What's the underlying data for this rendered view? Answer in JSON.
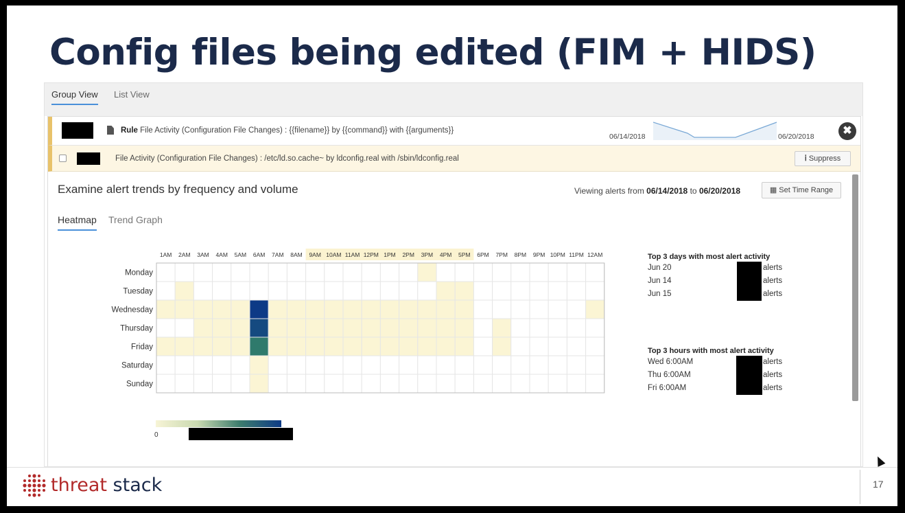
{
  "slide": {
    "title": "Config files being edited (FIM + HIDS)",
    "page_number": "17"
  },
  "view_tabs": [
    {
      "label": "Group View",
      "active": true
    },
    {
      "label": "List View",
      "active": false
    }
  ],
  "rule": {
    "prefix": "Rule",
    "text": "File Activity (Configuration File Changes) : {{filename}} by {{command}} with {{arguments}}",
    "start_date": "06/14/2018",
    "end_date": "06/20/2018",
    "close_glyph": "✖"
  },
  "alert": {
    "text": "File Activity (Configuration File Changes) : /etc/ld.so.cache~ by ldconfig.real with /sbin/ldconfig.real",
    "suppress_label": "Suppress"
  },
  "panel": {
    "title": "Examine alert trends by frequency and volume",
    "viewing_prefix": "Viewing alerts from",
    "from_date": "06/14/2018",
    "to_word": "to",
    "to_date": "06/20/2018",
    "set_time_label": "Set Time Range",
    "tabs": [
      {
        "label": "Heatmap",
        "active": true
      },
      {
        "label": "Trend Graph",
        "active": false
      }
    ]
  },
  "chart_data": {
    "type": "heatmap",
    "x": [
      "1AM",
      "2AM",
      "3AM",
      "4AM",
      "5AM",
      "6AM",
      "7AM",
      "8AM",
      "9AM",
      "10AM",
      "11AM",
      "12PM",
      "1PM",
      "2PM",
      "3PM",
      "4PM",
      "5PM",
      "6PM",
      "7PM",
      "8PM",
      "9PM",
      "10PM",
      "11PM",
      "12AM"
    ],
    "highlight_hours": [
      "9AM",
      "10AM",
      "11AM",
      "12PM",
      "1PM",
      "2PM",
      "3PM",
      "4PM",
      "5PM"
    ],
    "y": [
      "Monday",
      "Tuesday",
      "Wednesday",
      "Thursday",
      "Friday",
      "Saturday",
      "Sunday"
    ],
    "values": [
      [
        0,
        0,
        0,
        0,
        0,
        0,
        0,
        0,
        0,
        0,
        0,
        0,
        0,
        0,
        1,
        0,
        0,
        0,
        0,
        0,
        0,
        0,
        0,
        0
      ],
      [
        0,
        1,
        0,
        0,
        0,
        0,
        0,
        0,
        0,
        0,
        0,
        0,
        0,
        0,
        0,
        1,
        1,
        0,
        0,
        0,
        0,
        0,
        0,
        0
      ],
      [
        1,
        1,
        1,
        1,
        1,
        10,
        1,
        1,
        1,
        1,
        1,
        1,
        1,
        1,
        1,
        1,
        1,
        0,
        0,
        0,
        0,
        0,
        0,
        1
      ],
      [
        0,
        0,
        1,
        1,
        1,
        9,
        1,
        1,
        1,
        1,
        1,
        1,
        1,
        1,
        1,
        1,
        1,
        0,
        1,
        0,
        0,
        0,
        0,
        0
      ],
      [
        1,
        1,
        1,
        1,
        1,
        6,
        1,
        1,
        1,
        1,
        1,
        1,
        1,
        1,
        1,
        1,
        1,
        0,
        1,
        0,
        0,
        0,
        0,
        0
      ],
      [
        0,
        0,
        0,
        0,
        0,
        1,
        0,
        0,
        0,
        0,
        0,
        0,
        0,
        0,
        0,
        0,
        0,
        0,
        0,
        0,
        0,
        0,
        0,
        0
      ],
      [
        0,
        0,
        0,
        0,
        0,
        1,
        0,
        0,
        0,
        0,
        0,
        0,
        0,
        0,
        0,
        0,
        0,
        0,
        0,
        0,
        0,
        0,
        0,
        0
      ]
    ],
    "legend_min": "0",
    "colors": {
      "low": "#fbf5d4",
      "mid": "#2f7a6c",
      "high": "#0d3a86",
      "empty": "#ffffff",
      "grid": "#e6e6e6",
      "highlight_band": "#fbf3d0"
    }
  },
  "top_days": {
    "title": "Top 3 days with most alert activity",
    "rows": [
      {
        "label": "Jun 20",
        "suffix": "alerts"
      },
      {
        "label": "Jun 14",
        "suffix": "alerts"
      },
      {
        "label": "Jun 15",
        "suffix": "alerts"
      }
    ]
  },
  "top_hours": {
    "title": "Top 3 hours with most alert activity",
    "rows": [
      {
        "label": "Wed 6:00AM",
        "suffix": "alerts"
      },
      {
        "label": "Thu 6:00AM",
        "suffix": "alerts"
      },
      {
        "label": "Fri 6:00AM",
        "suffix": "alerts"
      }
    ]
  },
  "brand": {
    "part1": "threat",
    "part2": "stack",
    "logo_color": "#b22a2a"
  }
}
